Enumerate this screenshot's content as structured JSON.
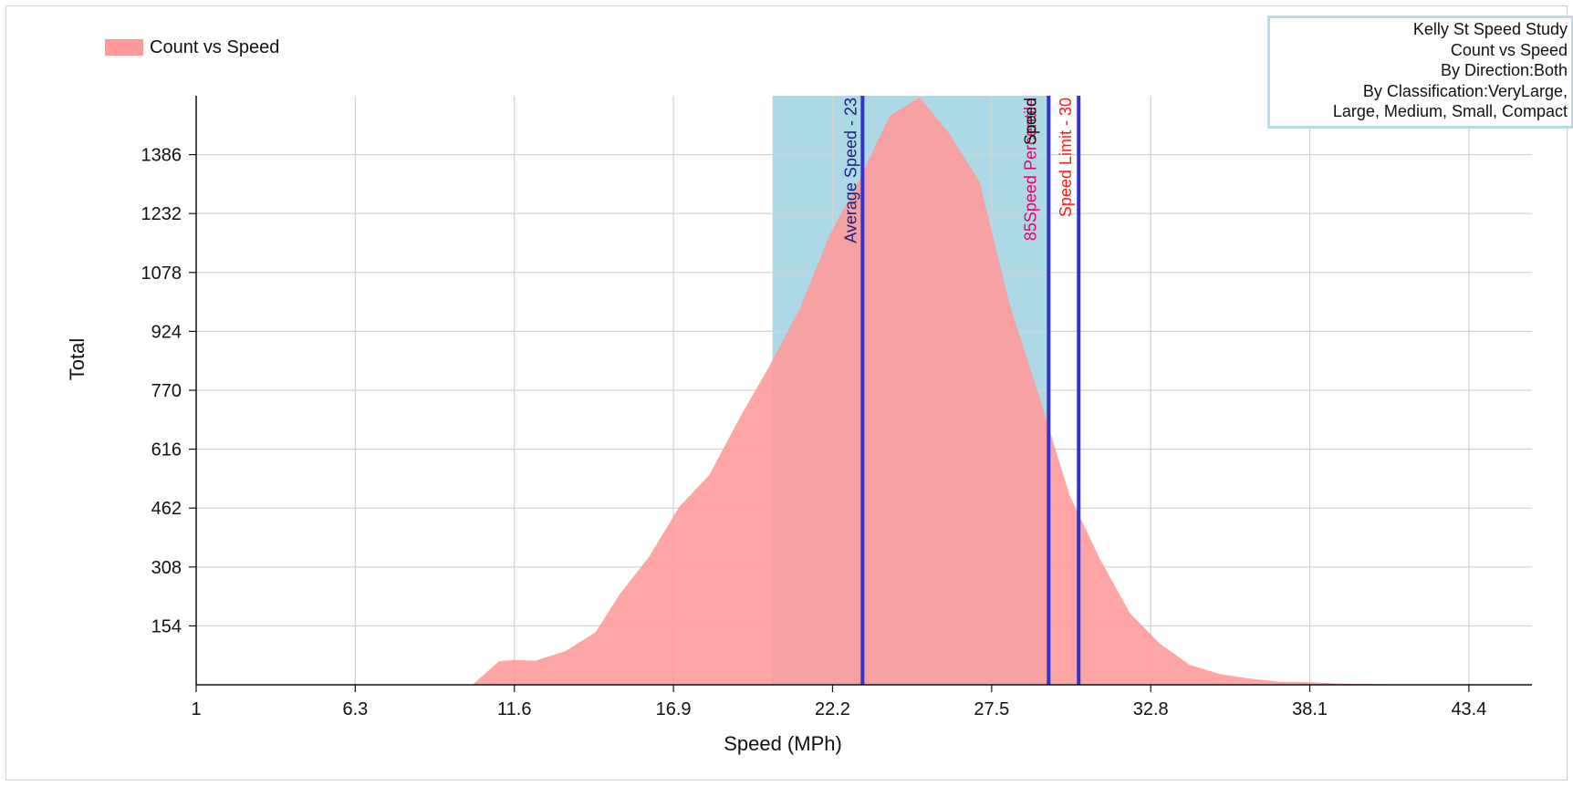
{
  "chart_data": {
    "type": "area",
    "title_lines": [
      "Kelly St Speed Study",
      "Count vs Speed",
      "By Direction:Both",
      "By Classification:VeryLarge,",
      "Large, Medium, Small, Compact"
    ],
    "xlabel": "Speed (MPh)",
    "ylabel": "Total",
    "xlim": [
      1,
      45.5
    ],
    "ylim": [
      0,
      1540
    ],
    "x_ticks": [
      "1",
      "6.3",
      "11.6",
      "16.9",
      "22.2",
      "27.5",
      "32.8",
      "38.1",
      "43.4"
    ],
    "x_tick_values": [
      1,
      6.3,
      11.6,
      16.9,
      22.2,
      27.5,
      32.8,
      38.1,
      43.4
    ],
    "y_ticks": [
      "154",
      "308",
      "462",
      "616",
      "770",
      "924",
      "1078",
      "1232",
      "1386"
    ],
    "y_tick_values": [
      154,
      308,
      462,
      616,
      770,
      924,
      1078,
      1232,
      1386
    ],
    "grid": true,
    "legend_position": "top-left",
    "series": [
      {
        "name": "Count vs Speed",
        "color": "#ff9999",
        "x": [
          10.2,
          11.1,
          11.6,
          12.3,
          13.3,
          14.3,
          15.1,
          16.1,
          17.1,
          18.1,
          19.1,
          20.1,
          21.1,
          22.1,
          23.1,
          24.1,
          25.1,
          26.1,
          27.1,
          28.1,
          29.1,
          30.1,
          31.1,
          32.1,
          33.1,
          34.1,
          35.1,
          36.1,
          37.1,
          38.1,
          39.1,
          40.1,
          41.1,
          42.1,
          43.1,
          44.1
        ],
        "y": [
          0,
          62,
          65,
          63,
          88,
          137,
          236,
          336,
          466,
          549,
          697,
          834,
          982,
          1175,
          1322,
          1487,
          1536,
          1440,
          1315,
          995,
          750,
          495,
          330,
          188,
          108,
          52,
          28,
          16,
          8,
          7,
          3,
          2,
          1,
          1,
          0,
          0
        ]
      }
    ],
    "highlight_band": {
      "x_range": [
        20.2,
        29.4
      ],
      "color": "#add8e6"
    },
    "reference_lines": [
      {
        "label": "Average Speed - 23",
        "x": 23.2,
        "color": "#3333cc",
        "text_color": "#1a237e"
      },
      {
        "label": "85Speed Percentile",
        "x": 29.4,
        "color": "#3333cc",
        "text_color": "#e6006e"
      },
      {
        "label": "Speed",
        "x": 29.0,
        "color": "#3333cc",
        "text_color": "#111111"
      },
      {
        "label": "Speed Limit - 30",
        "x": 30.4,
        "color": "#3333cc",
        "text_color": "#ff1a1a"
      }
    ]
  }
}
